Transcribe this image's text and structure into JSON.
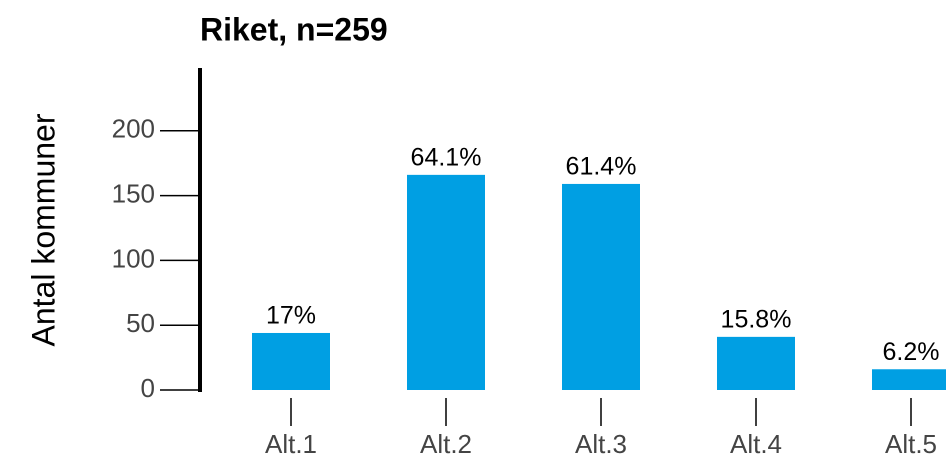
{
  "chart_data": {
    "type": "bar",
    "title": "Riket, n=259",
    "ylabel": "Antal kommuner",
    "categories": [
      "Alt.1",
      "Alt.2",
      "Alt.3",
      "Alt.4",
      "Alt.5"
    ],
    "values": [
      44,
      166,
      159,
      41,
      16
    ],
    "value_labels": [
      "17%",
      "64.1%",
      "61.4%",
      "15.8%",
      "6.2%"
    ],
    "color": "#009fe3",
    "ylim": [
      0,
      250
    ],
    "yticks": [
      0,
      50,
      100,
      150,
      200
    ],
    "grid": false
  }
}
